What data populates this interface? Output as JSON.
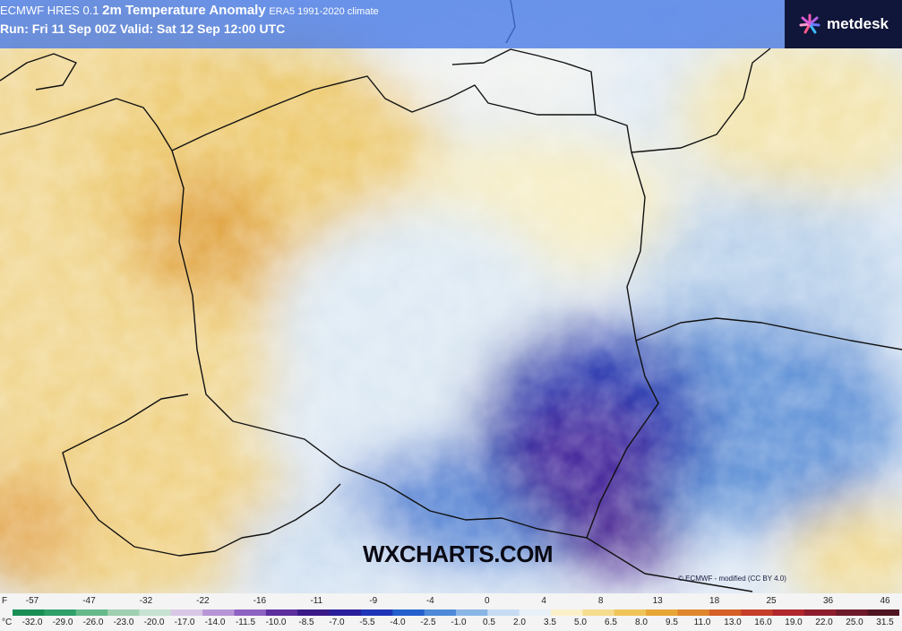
{
  "header": {
    "model": "ECMWF HRES 0.1",
    "product": "2m Temperature Anomaly",
    "climate": "ERA5 1991-2020 climate",
    "run_line": "Run: Fri 11 Sep 00Z Valid: Sat 12 Sep 12:00 UTC"
  },
  "brand": {
    "name": "metdesk",
    "icon": "metdesk-logo-icon"
  },
  "watermark": "WXCHARTS.COM",
  "attribution": "© ECMWF - modified (CC BY 4.0)",
  "legend": {
    "f_unit": "F",
    "f_ticks": [
      "-57",
      "-47",
      "-32",
      "-22",
      "-16",
      "-11",
      "-9",
      "-4",
      "0",
      "4",
      "8",
      "13",
      "18",
      "25",
      "36",
      "46"
    ],
    "c_unit": "°C",
    "c_ticks": [
      "-32.0",
      "-29.0",
      "-26.0",
      "-23.0",
      "-20.0",
      "-17.0",
      "-14.0",
      "-11.5",
      "-10.0",
      "-8.5",
      "-7.0",
      "-5.5",
      "-4.0",
      "-2.5",
      "-1.0",
      "0.5",
      "2.0",
      "3.5",
      "5.0",
      "6.5",
      "8.0",
      "9.5",
      "11.0",
      "13.0",
      "16.0",
      "19.0",
      "22.0",
      "25.0",
      "31.5"
    ],
    "colors": [
      "#1a8f55",
      "#2fa06a",
      "#66b98a",
      "#9fd0b0",
      "#c7e2d2",
      "#d9c7e6",
      "#b896d6",
      "#8e62c2",
      "#5c2e9e",
      "#3a1a86",
      "#2a1e9a",
      "#1f35b8",
      "#2461cc",
      "#4d8ad8",
      "#8ab6e6",
      "#c7dcf2",
      "#e8f0f8",
      "#fbf1c9",
      "#f6dc8e",
      "#efc45a",
      "#e8a637",
      "#e0862c",
      "#d56028",
      "#c63f2a",
      "#b0282d",
      "#8e1e2e",
      "#6e1a2a",
      "#4f1522"
    ]
  }
}
